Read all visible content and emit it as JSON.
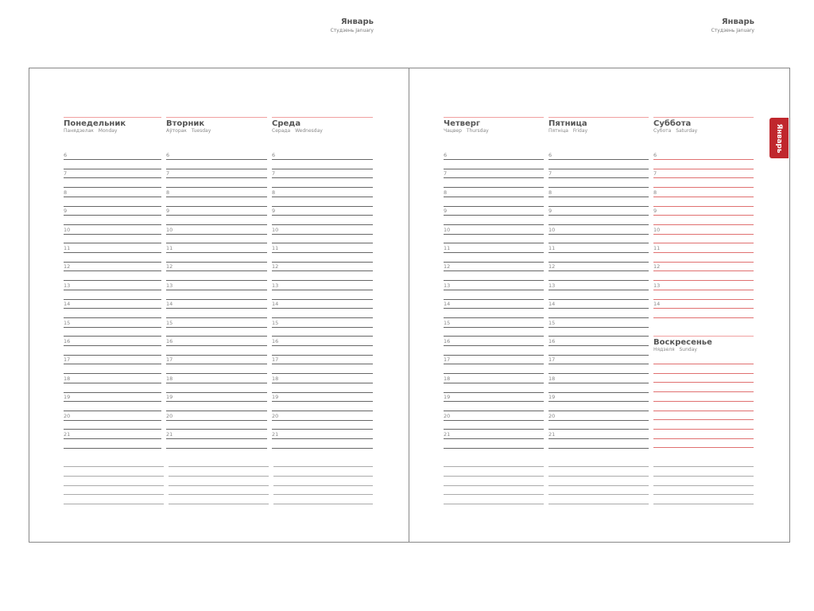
{
  "month": {
    "title": "Январь",
    "subtitle": "Студзень  January"
  },
  "tab_label": "Январь",
  "hours": [
    "6",
    "7",
    "8",
    "9",
    "10",
    "11",
    "12",
    "13",
    "14",
    "15",
    "16",
    "17",
    "18",
    "19",
    "20",
    "21"
  ],
  "saturday_hours": [
    "6",
    "7",
    "8",
    "9",
    "10",
    "11",
    "12",
    "13",
    "14"
  ],
  "days": [
    {
      "title": "Понедельник",
      "subtitle": "Панядзелак  Monday"
    },
    {
      "title": "Вторник",
      "subtitle": "Аўторак  Tuesday"
    },
    {
      "title": "Среда",
      "subtitle": "Серада  Wednesday"
    },
    {
      "title": "Четверг",
      "subtitle": "Чацвер  Thursday"
    },
    {
      "title": "Пятница",
      "subtitle": "Пятніца  Friday"
    },
    {
      "title": "Суббота",
      "subtitle": "Субота  Saturday"
    },
    {
      "title": "Воскресенье",
      "subtitle": "Нядзеля  Sunday"
    }
  ],
  "colors": {
    "accent": "#c0272d",
    "weekend_lines": "#e07070"
  }
}
